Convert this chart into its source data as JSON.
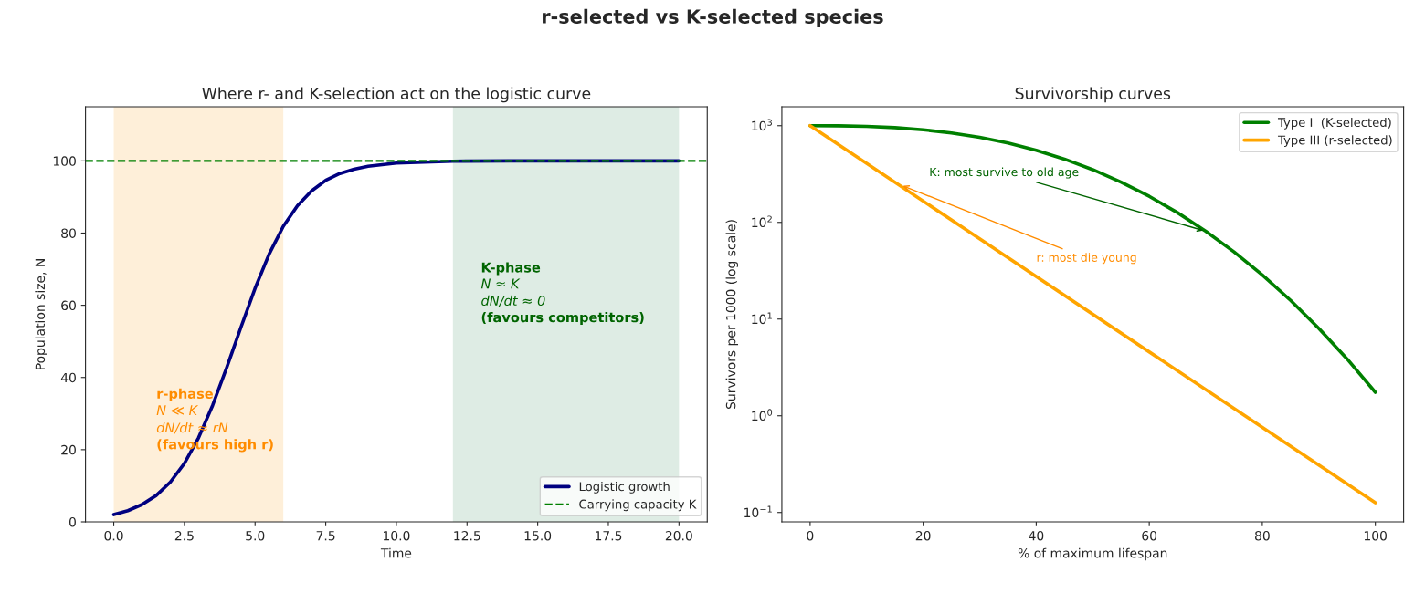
{
  "chart_data": [
    {
      "type": "line",
      "title": "r-selected vs K-selected species",
      "subtitle": "Where r- and K-selection act on the logistic curve",
      "xlabel": "Time",
      "ylabel": "Population size, N",
      "x": [
        0,
        0.5,
        1,
        1.5,
        2,
        2.5,
        3,
        3.5,
        4,
        4.5,
        5,
        5.5,
        6,
        6.5,
        7,
        7.5,
        8,
        8.5,
        9,
        10,
        12,
        14,
        16,
        18,
        20
      ],
      "series": [
        {
          "name": "Logistic growth",
          "color": "#000080",
          "values": [
            2.0,
            3.1,
            4.8,
            7.3,
            11.0,
            16.2,
            23.3,
            32.3,
            42.8,
            53.9,
            64.7,
            74.2,
            81.9,
            87.6,
            91.7,
            94.6,
            96.5,
            97.7,
            98.5,
            99.4,
            99.9,
            100,
            100,
            100,
            100
          ]
        }
      ],
      "ref_lines": [
        {
          "axis": "y",
          "value": 100,
          "label": "Carrying capacity K",
          "color": "#008000",
          "line_style": "dashed"
        }
      ],
      "bands": [
        {
          "axis": "x",
          "from": 0,
          "to": 6,
          "color": "#feefd9"
        },
        {
          "axis": "x",
          "from": 12,
          "to": 20,
          "color": "#deece4"
        }
      ],
      "annotations": [
        "r-phase",
        "N ≪ K",
        "dN/dt ≈ rN",
        "(favours high r)",
        "K-phase",
        "N ≈ K",
        "dN/dt ≈ 0",
        "(favours competitors)"
      ],
      "xlim": [
        -1,
        21
      ],
      "ylim": [
        0,
        115
      ],
      "xticks": [
        {
          "value": 0,
          "label": "0.0"
        },
        {
          "value": 2.5,
          "label": "2.5"
        },
        {
          "value": 5,
          "label": "5.0"
        },
        {
          "value": 7.5,
          "label": "7.5"
        },
        {
          "value": 10,
          "label": "10.0"
        },
        {
          "value": 12.5,
          "label": "12.5"
        },
        {
          "value": 15,
          "label": "15.0"
        },
        {
          "value": 17.5,
          "label": "17.5"
        },
        {
          "value": 20,
          "label": "20.0"
        }
      ],
      "yticks": [
        0,
        20,
        40,
        60,
        80,
        100
      ],
      "legend": "lower right",
      "grid": false
    },
    {
      "type": "line",
      "title": "Survivorship curves",
      "xlabel": "% of maximum lifespan",
      "ylabel": "Survivors per 1000 (log scale)",
      "log": "y",
      "series": [
        {
          "name": "Type I  (K-selected)",
          "color": "#008000",
          "x": [
            0,
            5,
            10,
            15,
            20,
            25,
            30,
            35,
            40,
            45,
            50,
            55,
            60,
            65,
            70,
            75,
            80,
            85,
            90,
            95,
            100
          ],
          "values": [
            1000,
            997,
            984,
            955,
            908,
            841,
            758,
            661,
            557,
            451,
            351,
            261,
            186,
            126,
            81,
            49.5,
            28.6,
            15.6,
            8.0,
            3.87,
            1.75
          ]
        },
        {
          "name": "Type III (r-selected)",
          "color": "#ffa500",
          "x": [
            0,
            100
          ],
          "values": [
            1000,
            0.126
          ]
        }
      ],
      "annotations": [
        {
          "text": "K: most survive to old age",
          "x": 70,
          "y": 81
        },
        {
          "text": "r: most die young",
          "x": 16,
          "y": 244
        }
      ],
      "xlim": [
        -5,
        105
      ],
      "ylim": [
        0.08,
        1570
      ],
      "xticks": [
        0,
        20,
        40,
        60,
        80,
        100
      ],
      "yticks": [
        {
          "value": 0.1,
          "label": "10$^{−1}$"
        },
        {
          "value": 1,
          "label": "10$^{0}$"
        },
        {
          "value": 10,
          "label": "10$^{1}$"
        },
        {
          "value": 100,
          "label": "10$^{2}$"
        },
        {
          "value": 1000,
          "label": "10$^{3}$"
        }
      ],
      "legend": "upper right",
      "grid": false
    }
  ]
}
